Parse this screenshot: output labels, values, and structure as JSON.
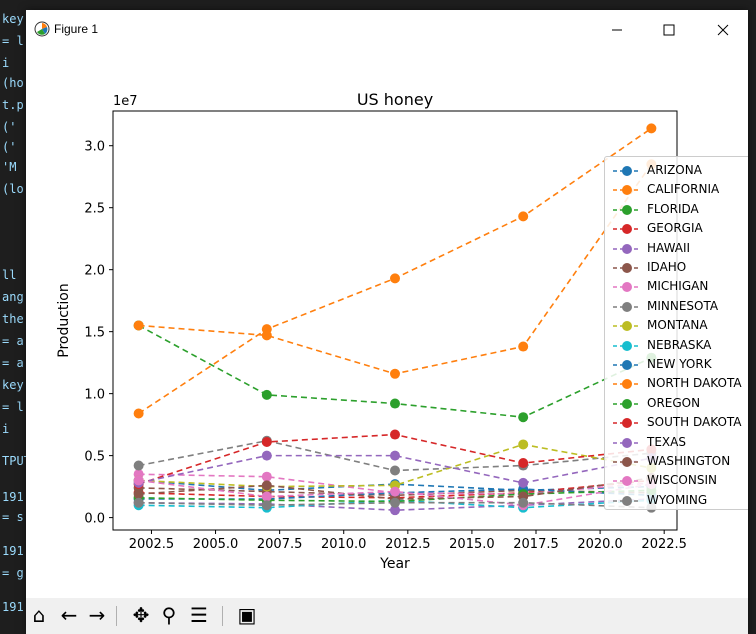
{
  "window": {
    "title": "Figure 1",
    "minimize_icon": "minimize-icon",
    "maximize_icon": "maximize-icon",
    "close_icon": "close-icon"
  },
  "editor_fragments": [
    "key",
    "= l",
    "  i",
    "(ho",
    "t.p",
    "('",
    "('",
    "'M",
    "(lo",
    "ll",
    "ang",
    "the",
    "= a",
    "= a",
    "key",
    "= l",
    "  i",
    "TPUT",
    "191",
    "= s",
    "191",
    "= g",
    "191"
  ],
  "toolbar": {
    "buttons": [
      {
        "name": "home-icon",
        "glyph": "⌂"
      },
      {
        "name": "back-icon",
        "glyph": "←"
      },
      {
        "name": "forward-icon",
        "glyph": "→"
      },
      {
        "name": "pan-icon",
        "glyph": "✥"
      },
      {
        "name": "zoom-icon",
        "glyph": "⚲"
      },
      {
        "name": "configure-subplots-icon",
        "glyph": "☰"
      },
      {
        "name": "save-icon",
        "glyph": "▣"
      }
    ]
  },
  "chart_data": {
    "type": "line",
    "title": "US honey",
    "xlabel": "Year",
    "ylabel": "Production",
    "offset_text": "1e7",
    "xlim": [
      2001.0,
      2023.0
    ],
    "ylim": [
      -0.1,
      3.28
    ],
    "y_scale_label": "values in units of 1e7",
    "xticks": [
      2002.5,
      2005.0,
      2007.5,
      2010.0,
      2012.5,
      2015.0,
      2017.5,
      2020.0,
      2022.5
    ],
    "xtick_labels": [
      "2002.5",
      "2005.0",
      "2007.5",
      "2010.0",
      "2012.5",
      "2015.0",
      "2017.5",
      "2020.0",
      "2022.5"
    ],
    "yticks": [
      0.0,
      0.5,
      1.0,
      1.5,
      2.0,
      2.5,
      3.0
    ],
    "ytick_labels": [
      "0.0",
      "0.5",
      "1.0",
      "1.5",
      "2.0",
      "2.5",
      "3.0"
    ],
    "line_style": "dashed",
    "marker": "circle",
    "legend_position": "right",
    "x": [
      2002,
      2007,
      2012,
      2017,
      2022
    ],
    "series": [
      {
        "name": "ARIZONA",
        "color": "#1f77b4",
        "values": [
          0.3,
          0.22,
          0.27,
          0.22,
          0.25
        ]
      },
      {
        "name": "CALIFORNIA",
        "color": "#ff7f0e",
        "values": [
          0.84,
          1.52,
          1.93,
          2.43,
          3.14
        ]
      },
      {
        "name": "FLORIDA",
        "color": "#2ca02c",
        "values": [
          1.55,
          0.99,
          0.92,
          0.81,
          1.29
        ]
      },
      {
        "name": "GEORGIA",
        "color": "#d62728",
        "values": [
          0.2,
          0.17,
          0.16,
          0.2,
          0.3
        ]
      },
      {
        "name": "HAWAII",
        "color": "#9467bd",
        "values": [
          0.12,
          0.11,
          0.06,
          0.1,
          0.15
        ]
      },
      {
        "name": "IDAHO",
        "color": "#8c564b",
        "values": [
          0.24,
          0.21,
          0.18,
          0.22,
          0.2
        ]
      },
      {
        "name": "MICHIGAN",
        "color": "#e377c2",
        "values": [
          0.35,
          0.33,
          0.2,
          0.19,
          0.28
        ]
      },
      {
        "name": "MINNESOTA",
        "color": "#7f7f7f",
        "values": [
          0.42,
          0.62,
          0.38,
          0.42,
          0.52
        ]
      },
      {
        "name": "MONTANA",
        "color": "#bcbd22",
        "values": [
          0.3,
          0.25,
          0.26,
          0.59,
          0.4
        ]
      },
      {
        "name": "NEBRASKA",
        "color": "#17becf",
        "values": [
          0.1,
          0.08,
          0.14,
          0.08,
          0.14
        ]
      },
      {
        "name": "NEW YORK",
        "color": "#1f77b4",
        "values": [
          0.15,
          0.15,
          0.2,
          0.23,
          0.18
        ]
      },
      {
        "name": "NORTH DAKOTA",
        "color": "#ff7f0e",
        "values": [
          1.55,
          1.47,
          1.16,
          1.38,
          2.85
        ]
      },
      {
        "name": "OREGON",
        "color": "#2ca02c",
        "values": [
          0.16,
          0.14,
          0.13,
          0.19,
          0.22
        ]
      },
      {
        "name": "SOUTH DAKOTA",
        "color": "#d62728",
        "values": [
          0.27,
          0.61,
          0.67,
          0.44,
          0.55
        ]
      },
      {
        "name": "TEXAS",
        "color": "#9467bd",
        "values": [
          0.28,
          0.5,
          0.5,
          0.28,
          0.48
        ]
      },
      {
        "name": "WASHINGTON",
        "color": "#8c564b",
        "values": [
          0.19,
          0.26,
          0.15,
          0.17,
          0.32
        ]
      },
      {
        "name": "WISCONSIN",
        "color": "#e377c2",
        "values": [
          0.3,
          0.17,
          0.21,
          0.1,
          0.27
        ]
      },
      {
        "name": "WYOMING",
        "color": "#7f7f7f",
        "values": [
          0.12,
          0.1,
          0.12,
          0.12,
          0.08
        ]
      }
    ]
  }
}
